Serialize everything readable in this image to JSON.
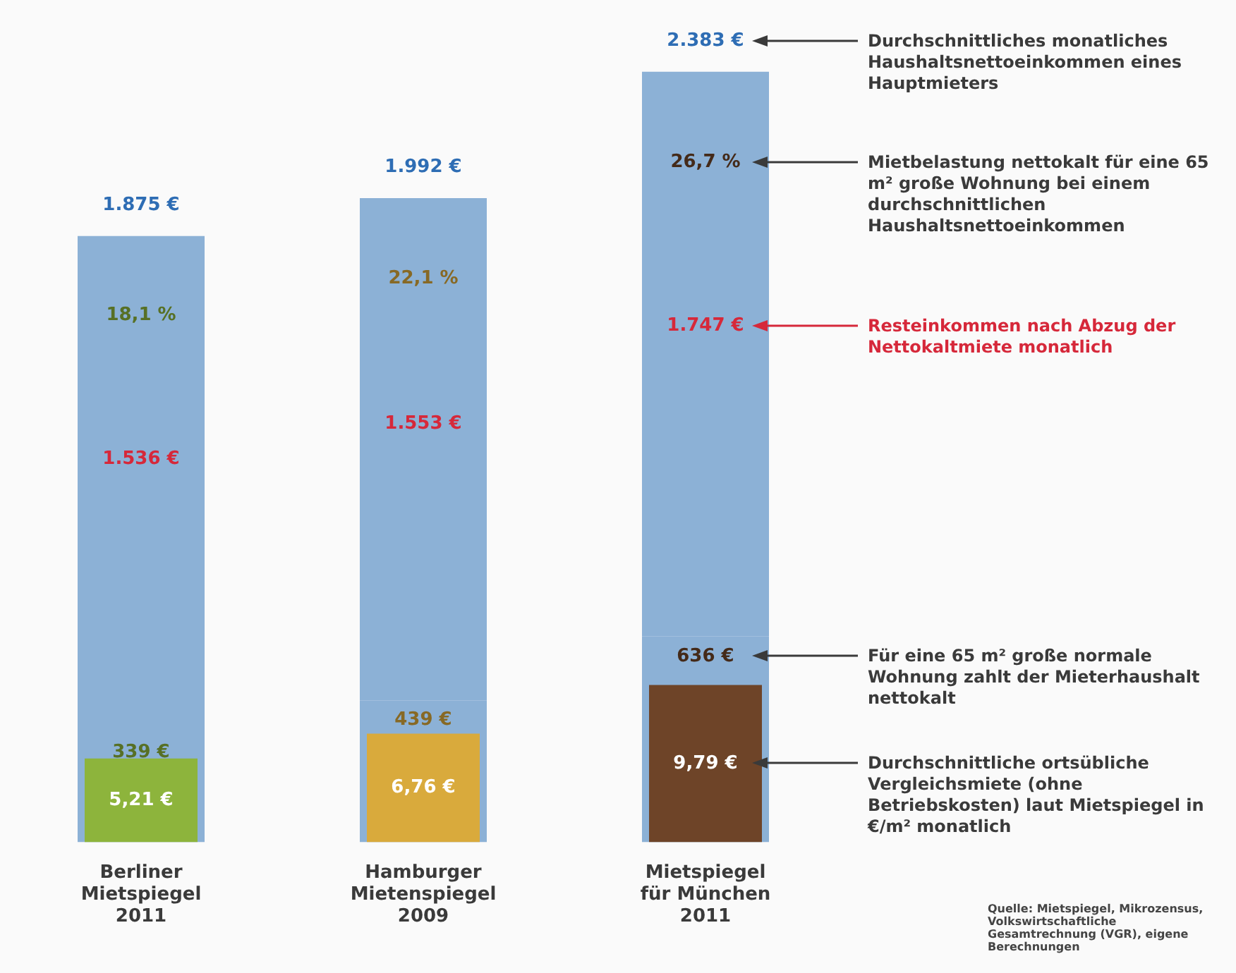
{
  "chart_data": {
    "type": "bar",
    "stacked": true,
    "categories": [
      "Berliner Mietspiegel 2011",
      "Hamburger Mietenspiegel 2009",
      "Mietspiegel für München 2011"
    ],
    "series": [
      {
        "color": "#8cb1d6",
        "values": [
          339,
          439,
          636
        ],
        "value_labels": [
          "339 €",
          "439 €",
          "636 €"
        ]
      },
      {
        "color": "#8cb1d6",
        "values": [
          1536,
          1553,
          1747
        ],
        "value_labels": [
          "1.536 €",
          "1.553 €",
          "1.747 €"
        ]
      },
      {
        "colors": [
          "#8db43c",
          "#d9aa3c",
          "#6e4428"
        ],
        "values": [
          5.21,
          6.76,
          9.79
        ],
        "value_labels": [
          "5,21 €",
          "6,76 €",
          "9,79 €"
        ],
        "axis": "y2"
      }
    ],
    "totals": [
      "1.875 €",
      "1.992 €",
      "2.383 €"
    ],
    "annotations": [
      "18,1 %",
      "22,1 %",
      "26,7 %",
      "Durchschnittliches monatliches Haushaltsnettoeinkommen eines Hauptmieters",
      "Mietbelastung nettokalt für eine 65 m² große Wohnung bei einem durchschnittlichen Haushaltsnettoeinkommen",
      "Resteinkommen nach Abzug der Nettokaltmiete monatlich",
      "Für eine 65 m² große normale Wohnung zahlt der Mieterhaushalt nettokalt",
      "Durchschnittliche ortsübliche Vergleichsmiete (ohne Betriebskosten) laut Mietspiegel in €/m² monatlich",
      "Quelle: Mietspiegel, Mikrozensus, Volkswirtschaftliche Gesamtrechnung (VGR), eigene Berechnungen"
    ],
    "tick_labels": "x",
    "legend": false,
    "grid": false
  }
}
